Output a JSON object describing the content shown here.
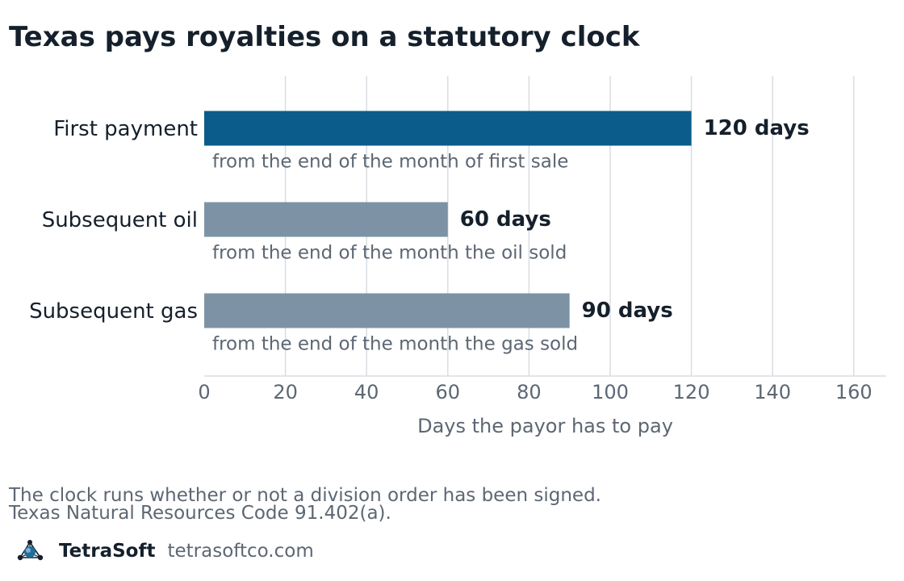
{
  "chart_data": {
    "type": "bar",
    "orientation": "horizontal",
    "title": "Texas pays royalties on a statutory clock",
    "xlabel": "Days the payor has to pay",
    "ylabel": "",
    "xlim": [
      0,
      168
    ],
    "xticks": [
      0,
      20,
      40,
      60,
      80,
      100,
      120,
      140,
      160
    ],
    "grid": "vertical",
    "categories": [
      "First payment",
      "Subsequent oil",
      "Subsequent gas"
    ],
    "values": [
      120,
      60,
      90
    ],
    "value_labels": [
      "120 days",
      "60 days",
      "90 days"
    ],
    "annotations": [
      "from the end of the month of first sale",
      "from the end of the month the oil sold",
      "from the end of the month the gas sold"
    ],
    "colors": [
      "#0b5c8a",
      "#7d93a5",
      "#7d93a5"
    ]
  },
  "footnotes": [
    "The clock runs whether or not a division order has been signed.",
    "Texas Natural Resources Code 91.402(a)."
  ],
  "brand": {
    "name": "TetraSoft",
    "url": "tetrasoftco.com",
    "logo_icon": "tetrahedron-logo-icon"
  },
  "colors": {
    "text": "#15202c",
    "muted": "#5c6773",
    "grid": "#d9dde3"
  }
}
